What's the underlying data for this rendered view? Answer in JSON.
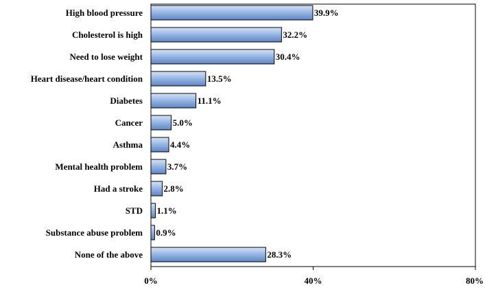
{
  "chart_data": {
    "type": "bar",
    "orientation": "horizontal",
    "categories": [
      "High blood pressure",
      "Cholesterol is high",
      "Need to lose weight",
      "Heart disease/heart condition",
      "Diabetes",
      "Cancer",
      "Asthma",
      "Mental health problem",
      "Had a stroke",
      "STD",
      "Substance abuse problem",
      "None of the above"
    ],
    "values": [
      39.9,
      32.2,
      30.4,
      13.5,
      11.1,
      5.0,
      4.4,
      3.7,
      2.8,
      1.1,
      0.9,
      28.3
    ],
    "data_labels": [
      "39.9%",
      "32.2%",
      "30.4%",
      "13.5%",
      "11.1%",
      "5.0%",
      "4.4%",
      "3.7%",
      "2.8%",
      "1.1%",
      "0.9%",
      "28.3%"
    ],
    "x_ticks": [
      {
        "value": 0,
        "label": "0%"
      },
      {
        "value": 40,
        "label": "40%"
      },
      {
        "value": 80,
        "label": "80%"
      }
    ],
    "xlim": [
      0,
      80
    ],
    "title": "",
    "xlabel": "",
    "ylabel": "",
    "grid": false,
    "legend": "none",
    "colors": {
      "bar_top": "#d6e4f7",
      "bar_mid": "#9ab9e6",
      "bar_bottom": "#5f86c4",
      "bar_stroke": "#000000",
      "axis": "#000000"
    }
  }
}
